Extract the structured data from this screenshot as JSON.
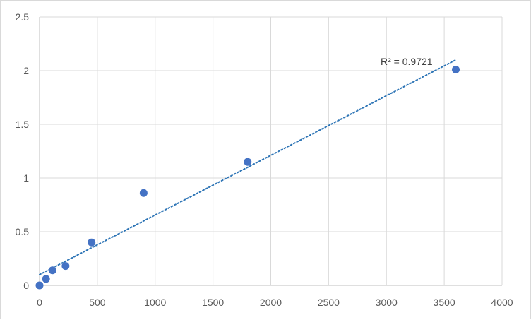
{
  "chart_data": {
    "type": "scatter",
    "title": "",
    "xlabel": "",
    "ylabel": "",
    "xlim": [
      0,
      4000
    ],
    "ylim": [
      0,
      2.5
    ],
    "x_ticks": [
      0,
      500,
      1000,
      1500,
      2000,
      2500,
      3000,
      3500,
      4000
    ],
    "y_ticks": [
      0,
      0.5,
      1,
      1.5,
      2,
      2.5
    ],
    "x_tick_labels": [
      "0",
      "500",
      "1000",
      "1500",
      "2000",
      "2500",
      "3000",
      "3500",
      "4000"
    ],
    "y_tick_labels": [
      "0",
      "0.5",
      "1",
      "1.5",
      "2",
      "2.5"
    ],
    "grid": true,
    "legend": "none",
    "series": [
      {
        "color": "#4472c4",
        "points": [
          {
            "x": 0,
            "y": 0.0
          },
          {
            "x": 56,
            "y": 0.06
          },
          {
            "x": 112,
            "y": 0.14
          },
          {
            "x": 225,
            "y": 0.18
          },
          {
            "x": 450,
            "y": 0.4
          },
          {
            "x": 900,
            "y": 0.86
          },
          {
            "x": 1800,
            "y": 1.15
          },
          {
            "x": 3600,
            "y": 2.01
          }
        ]
      }
    ],
    "trendline": {
      "type": "linear",
      "style": "dotted",
      "color": "#2e75b6",
      "x_range": [
        0,
        3600
      ],
      "y_range": [
        0.1,
        2.1
      ],
      "label": "R² = 0.9721"
    }
  }
}
